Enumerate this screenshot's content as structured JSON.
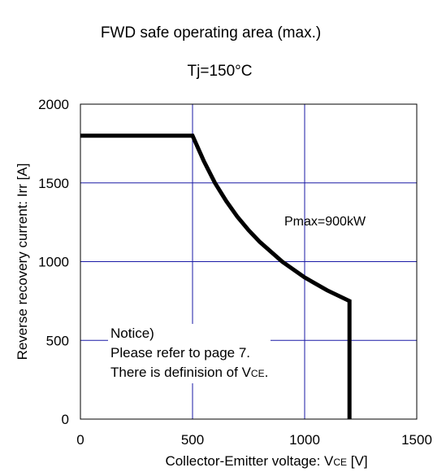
{
  "chart_data": {
    "type": "line",
    "title": "FWD safe operating area (max.)",
    "subtitle": "Tj=150°C",
    "xlabel": "Collector-Emitter voltage: V",
    "xlabel_sub": "CE",
    "xlabel_unit": " [V]",
    "ylabel": "Reverse recovery current: Irr [A]",
    "xlim": [
      0,
      1500
    ],
    "ylim": [
      0,
      2000
    ],
    "xticks": [
      0,
      500,
      1000,
      1500
    ],
    "yticks": [
      0,
      500,
      1000,
      1500,
      2000
    ],
    "grid": true,
    "series": [
      {
        "x": [
          0,
          500,
          550,
          600,
          650,
          700,
          750,
          800,
          900,
          1000,
          1100,
          1200,
          1200
        ],
        "y": [
          1800,
          1800,
          1640,
          1500,
          1385,
          1285,
          1200,
          1125,
          1000,
          900,
          818,
          750,
          0
        ]
      }
    ],
    "annotations": {
      "pmax": "Pmax=900kW",
      "notice_line1": "Notice)",
      "notice_line2": "Please refer to page 7.",
      "notice_line3": "There is definision of V",
      "notice_line3_sub": "CE",
      "notice_line3_end": "."
    },
    "colors": {
      "grid": "#1a1aa6",
      "curve": "#000000"
    }
  }
}
